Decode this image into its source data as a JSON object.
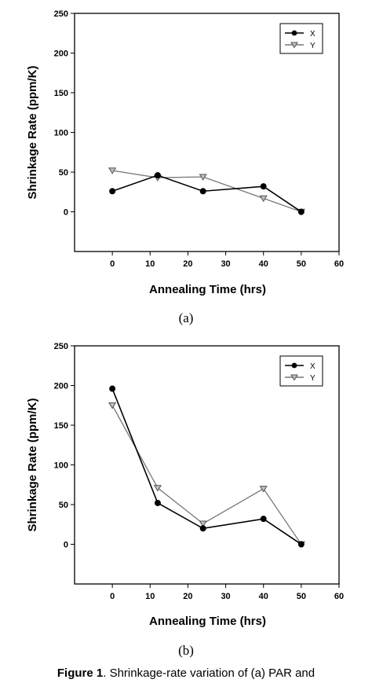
{
  "figure": {
    "caption_bold": "Figure 1",
    "caption_text": ". Shrinkage-rate variation of (a) PAR and"
  },
  "chart_data": [
    {
      "type": "line",
      "panel_label": "(a)",
      "xlabel": "Annealing Time (hrs)",
      "ylabel": "Shrinkage Rate (ppm/K)",
      "xlim": [
        -10,
        60
      ],
      "ylim": [
        -50,
        250
      ],
      "xticks": [
        0,
        10,
        20,
        30,
        40,
        50,
        60
      ],
      "yticks": [
        0,
        50,
        100,
        150,
        200,
        250
      ],
      "grid": false,
      "legend_position": "top-right",
      "series": [
        {
          "name": "X",
          "color": "#000000",
          "marker": "circle",
          "x": [
            0,
            12,
            24,
            40,
            50
          ],
          "y": [
            26,
            46,
            26,
            32,
            0
          ]
        },
        {
          "name": "Y",
          "color": "#777777",
          "marker": "triangle-down",
          "x": [
            0,
            12,
            24,
            40,
            50
          ],
          "y": [
            52,
            43,
            44,
            17,
            0
          ]
        }
      ]
    },
    {
      "type": "line",
      "panel_label": "(b)",
      "xlabel": "Annealing Time (hrs)",
      "ylabel": "Shrinkage Rate (ppm/K)",
      "xlim": [
        -10,
        60
      ],
      "ylim": [
        -50,
        250
      ],
      "xticks": [
        0,
        10,
        20,
        30,
        40,
        50,
        60
      ],
      "yticks": [
        0,
        50,
        100,
        150,
        200,
        250
      ],
      "grid": false,
      "legend_position": "top-right",
      "series": [
        {
          "name": "X",
          "color": "#000000",
          "marker": "circle",
          "x": [
            0,
            12,
            24,
            40,
            50
          ],
          "y": [
            196,
            52,
            20,
            32,
            0
          ]
        },
        {
          "name": "Y",
          "color": "#777777",
          "marker": "triangle-down",
          "x": [
            0,
            12,
            24,
            40,
            50
          ],
          "y": [
            175,
            71,
            26,
            70,
            0
          ]
        }
      ]
    }
  ]
}
